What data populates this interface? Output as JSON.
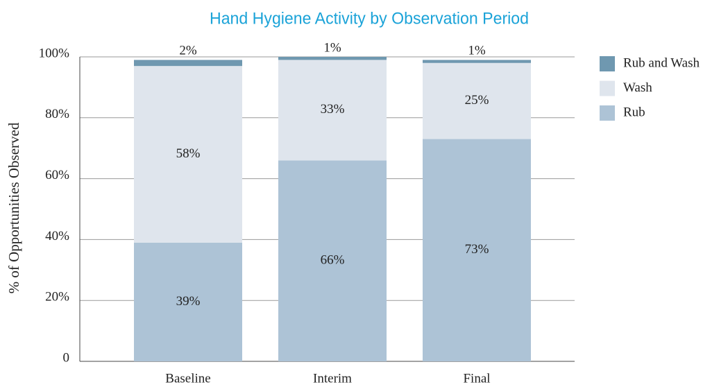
{
  "chart_data": {
    "type": "stacked_bar",
    "title": "Hand Hygiene Activity by Observation Period",
    "y_axis_label": "% of Opportunities Observed",
    "categories": [
      "Baseline",
      "Interim",
      "Final"
    ],
    "series": [
      {
        "name": "Rub",
        "color": "#adc3d6",
        "values": [
          39,
          66,
          73
        ],
        "value_labels": [
          "39%",
          "66%",
          "73%"
        ]
      },
      {
        "name": "Wash",
        "color": "#dfe5ed",
        "values": [
          58,
          33,
          25
        ],
        "value_labels": [
          "58%",
          "33%",
          "25%"
        ]
      },
      {
        "name": "Rub and Wash",
        "color": "#6f98b0",
        "values": [
          2,
          1,
          1
        ],
        "value_labels": [
          "2%",
          "1%",
          "1%"
        ]
      }
    ],
    "ylim": [
      0,
      100
    ],
    "yticks": [
      0,
      {
        "value": 20,
        "label": "20%"
      },
      {
        "value": 40,
        "label": "40%"
      },
      {
        "value": 60,
        "label": "60%"
      },
      {
        "value": 80,
        "label": "80%"
      },
      {
        "value": 100,
        "label": "100%"
      }
    ],
    "grid": true,
    "legend": "right"
  }
}
